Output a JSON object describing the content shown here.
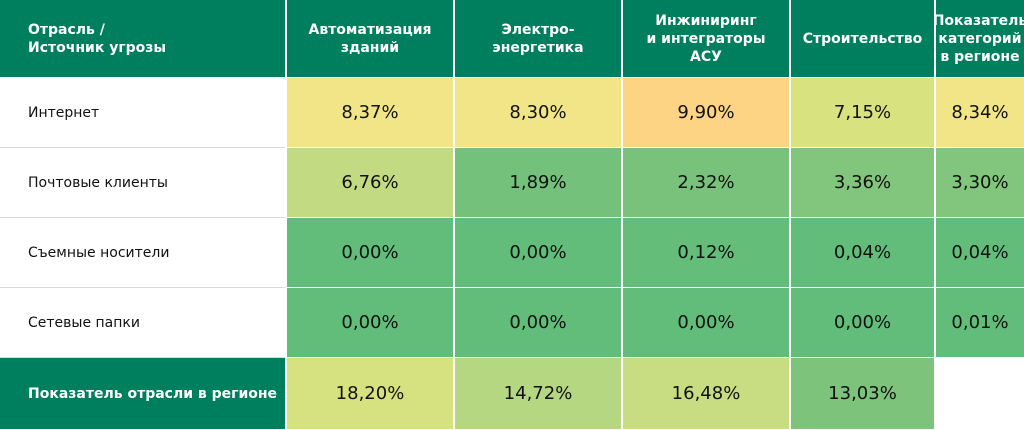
{
  "chart_data": {
    "type": "table",
    "column_header_corner": "Отрасль /\nИсточник угрозы",
    "columns": [
      "Автоматизация\nзданий",
      "Электро-\nэнергетика",
      "Инжиниринг\nи интеграторы\nАСУ",
      "Строительство",
      "Показатель\nкатегорий\nв регионе"
    ],
    "rows": [
      {
        "label": "Интернет",
        "values": [
          "8,37%",
          "8,30%",
          "9,90%",
          "7,15%",
          "8,34%"
        ],
        "colors": [
          "#f2e588",
          "#f2e588",
          "#fdd384",
          "#d8e27f",
          "#f2e588"
        ]
      },
      {
        "label": "Почтовые клиенты",
        "values": [
          "6,76%",
          "1,89%",
          "2,32%",
          "3,36%",
          "3,30%"
        ],
        "colors": [
          "#c2db83",
          "#73c17b",
          "#78c27b",
          "#82c57c",
          "#82c57c"
        ]
      },
      {
        "label": "Съемные носители",
        "values": [
          "0,00%",
          "0,00%",
          "0,12%",
          "0,04%",
          "0,04%"
        ],
        "colors": [
          "#62bd7a",
          "#62bd7a",
          "#64be7a",
          "#63bd7a",
          "#63bd7a"
        ]
      },
      {
        "label": "Сетевые папки",
        "values": [
          "0,00%",
          "0,00%",
          "0,00%",
          "0,00%",
          "0,01%"
        ],
        "colors": [
          "#62bd7a",
          "#62bd7a",
          "#62bd7a",
          "#62bd7a",
          "#62bd7a"
        ]
      }
    ],
    "footer": {
      "label": "Показатель отрасли в регионе",
      "values": [
        "18,20%",
        "14,72%",
        "16,48%",
        "13,03%",
        ""
      ],
      "colors": [
        "#d6e27f",
        "#b5d782",
        "#c8dc81",
        "#7dc37b",
        "#ffffff"
      ]
    },
    "colors": {
      "header": "#007f5e",
      "header_text": "#ffffff"
    }
  }
}
